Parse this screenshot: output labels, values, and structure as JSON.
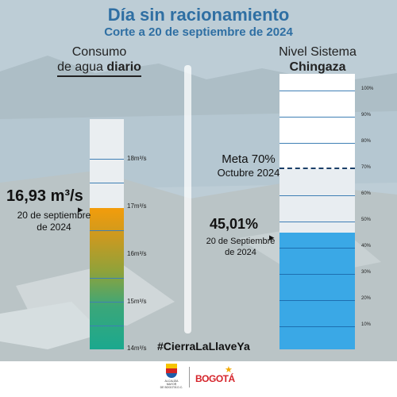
{
  "header": {
    "title": "Día sin racionamiento",
    "subtitle": "Corte a 20 de septiembre de 2024"
  },
  "left_panel": {
    "heading_line1": "Consumo",
    "heading_line2_regular": "de agua ",
    "heading_line2_bold": "diario",
    "value": "16,93 m³/s",
    "date_line1": "20 de septiembre",
    "date_line2": "de 2024",
    "ticks": [
      "18m³/s",
      "17m³/s",
      "16m³/s",
      "15m³/s",
      "14m³/s"
    ],
    "gauge_level_m3s": 16.93,
    "gauge_range_m3s": [
      14,
      18.67
    ]
  },
  "right_panel": {
    "heading_line1": "Nivel Sistema",
    "heading_line2": "Chingaza",
    "meta_line1": "Meta 70%",
    "meta_line2": "Octubre 2024",
    "value": "45,01%",
    "date_line1": "20 de Septiembre",
    "date_line2": "de 2024",
    "ticks": [
      "100%",
      "90%",
      "80%",
      "70%",
      "60%",
      "50%",
      "40%",
      "30%",
      "20%",
      "10%"
    ],
    "level_percent": 45.01,
    "meta_percent": 70
  },
  "hashtag": "#CierraLaLlaveYa",
  "footer": {
    "alcaldia_text_line1": "ALCALDÍA MAYOR",
    "alcaldia_text_line2": "DE BOGOTÁ D.C.",
    "bogota_logo": "BOGOTÁ"
  },
  "colors": {
    "title_blue": "#2f6fa3",
    "fill_blue": "#3aa8e6",
    "fill_orange": "#f39c0b",
    "fill_teal": "#1ba88e",
    "bogota_red": "#d5232a"
  }
}
